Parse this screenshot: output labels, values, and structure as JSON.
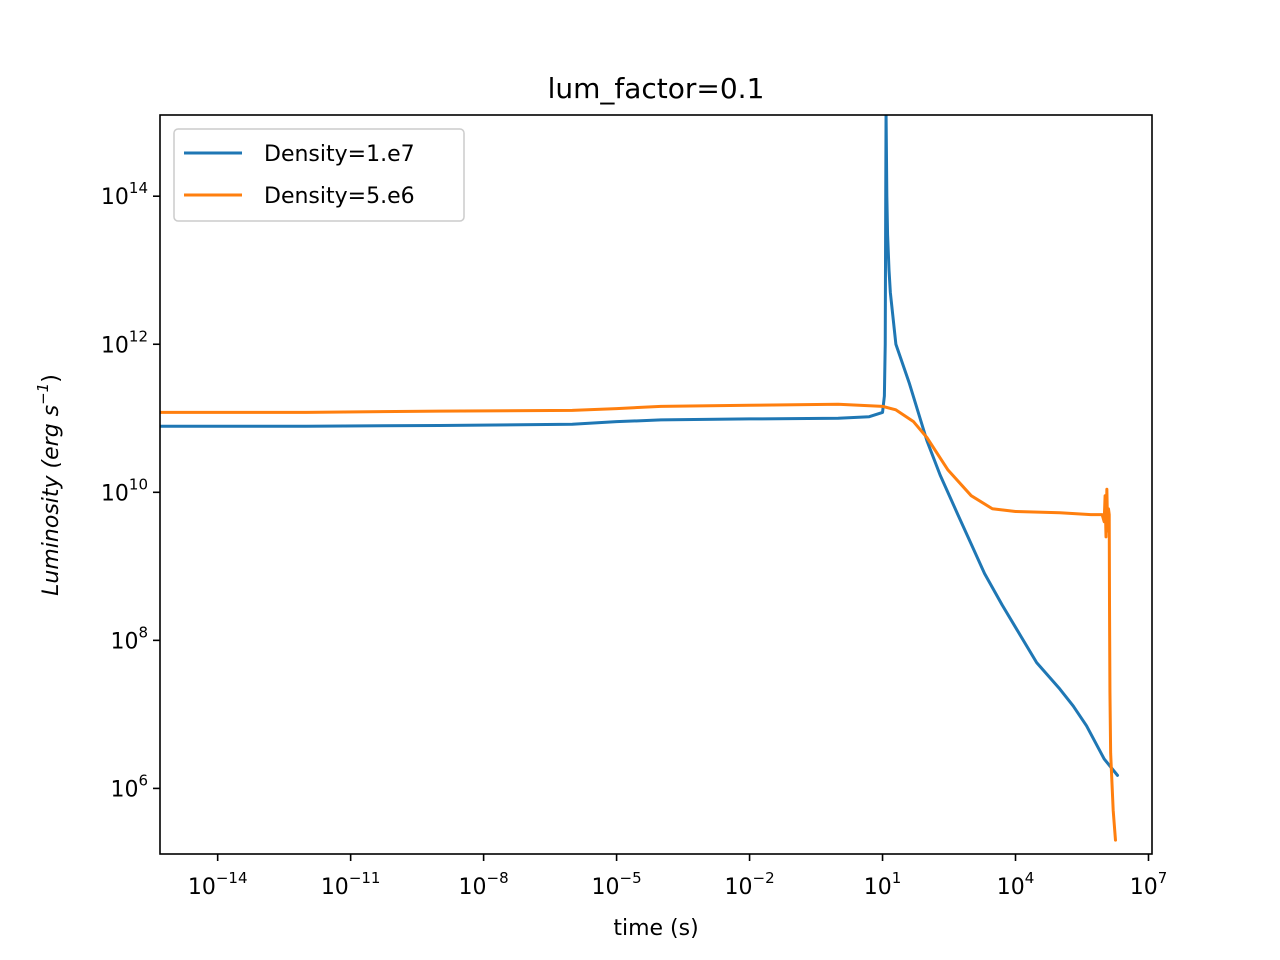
{
  "chart_data": {
    "type": "line",
    "title": "lum_factor=0.1",
    "xlabel": "time (s)",
    "ylabel": "Luminosity (erg s⁻¹)",
    "ylabel_parts": {
      "main": "Luminosity (erg s",
      "sup": "−1",
      "close": ")"
    },
    "xscale": "log",
    "yscale": "log",
    "xlim": [
      5e-16,
      12000000.0
    ],
    "ylim": [
      130000.0,
      1250000000000000.0
    ],
    "xticks": [
      {
        "base": "10",
        "exp": "−14",
        "value": 1e-14
      },
      {
        "base": "10",
        "exp": "−11",
        "value": 1e-11
      },
      {
        "base": "10",
        "exp": "−8",
        "value": 1e-08
      },
      {
        "base": "10",
        "exp": "−5",
        "value": 1e-05
      },
      {
        "base": "10",
        "exp": "−2",
        "value": 0.01
      },
      {
        "base": "10",
        "exp": "1",
        "value": 10
      },
      {
        "base": "10",
        "exp": "4",
        "value": 10000.0
      },
      {
        "base": "10",
        "exp": "7",
        "value": 10000000.0
      }
    ],
    "yticks": [
      {
        "base": "10",
        "exp": "6",
        "value": 1000000.0
      },
      {
        "base": "10",
        "exp": "8",
        "value": 100000000.0
      },
      {
        "base": "10",
        "exp": "10",
        "value": 10000000000.0
      },
      {
        "base": "10",
        "exp": "12",
        "value": 1000000000000.0
      },
      {
        "base": "10",
        "exp": "14",
        "value": 100000000000000.0
      }
    ],
    "legend_position": "top-left",
    "grid": false,
    "series": [
      {
        "name": "Density=1.e7",
        "color": "#1f77b4",
        "points": [
          [
            5e-16,
            78000000000.0
          ],
          [
            1e-12,
            78000000000.0
          ],
          [
            1e-09,
            80000000000.0
          ],
          [
            1e-06,
            83000000000.0
          ],
          [
            1e-05,
            90000000000.0
          ],
          [
            0.0001,
            95000000000.0
          ],
          [
            0.01,
            98000000000.0
          ],
          [
            1,
            100000000000.0
          ],
          [
            5,
            105000000000.0
          ],
          [
            10,
            120000000000.0
          ],
          [
            11,
            200000000000.0
          ],
          [
            11.5,
            1000000000000.0
          ],
          [
            11.8,
            100000000000000.0
          ],
          [
            12,
            1400000000000000.0
          ],
          [
            12.5,
            100000000000000.0
          ],
          [
            13,
            30000000000000.0
          ],
          [
            14,
            10000000000000.0
          ],
          [
            15,
            5000000000000.0
          ],
          [
            20,
            1000000000000.0
          ],
          [
            40,
            300000000000.0
          ],
          [
            100,
            50000000000.0
          ],
          [
            200,
            17000000000.0
          ],
          [
            500,
            5000000000.0
          ],
          [
            1000.0,
            2000000000.0
          ],
          [
            2000.0,
            800000000.0
          ],
          [
            5000.0,
            300000000.0
          ],
          [
            10000.0,
            150000000.0
          ],
          [
            30000.0,
            50000000.0
          ],
          [
            100000.0,
            22000000.0
          ],
          [
            200000.0,
            13000000.0
          ],
          [
            400000.0,
            7000000.0
          ],
          [
            1000000.0,
            2500000.0
          ],
          [
            2000000.0,
            1500000.0
          ]
        ]
      },
      {
        "name": "Density=5.e6",
        "color": "#ff7f0e",
        "points": [
          [
            5e-16,
            120000000000.0
          ],
          [
            1e-12,
            120000000000.0
          ],
          [
            1e-09,
            125000000000.0
          ],
          [
            1e-06,
            128000000000.0
          ],
          [
            1e-05,
            135000000000.0
          ],
          [
            0.0001,
            145000000000.0
          ],
          [
            0.01,
            150000000000.0
          ],
          [
            1,
            155000000000.0
          ],
          [
            10,
            145000000000.0
          ],
          [
            20,
            130000000000.0
          ],
          [
            50,
            90000000000.0
          ],
          [
            100,
            55000000000.0
          ],
          [
            300,
            20000000000.0
          ],
          [
            1000.0,
            9000000000.0
          ],
          [
            3000.0,
            6000000000.0
          ],
          [
            10000.0,
            5500000000.0
          ],
          [
            100000.0,
            5300000000.0
          ],
          [
            500000.0,
            5000000000.0
          ],
          [
            900000.0,
            5000000000.0
          ],
          [
            1000000.0,
            4000000000.0
          ],
          [
            1050000.0,
            9000000000.0
          ],
          [
            1100000.0,
            2500000000.0
          ],
          [
            1150000.0,
            11000000000.0
          ],
          [
            1200000.0,
            3000000000.0
          ],
          [
            1250000.0,
            6000000000.0
          ],
          [
            1300000.0,
            5000000000.0
          ],
          [
            1320000.0,
            300000000.0
          ],
          [
            1350000.0,
            20000000.0
          ],
          [
            1400000.0,
            3000000.0
          ],
          [
            1600000.0,
            500000.0
          ],
          [
            1800000.0,
            200000.0
          ]
        ]
      }
    ]
  }
}
